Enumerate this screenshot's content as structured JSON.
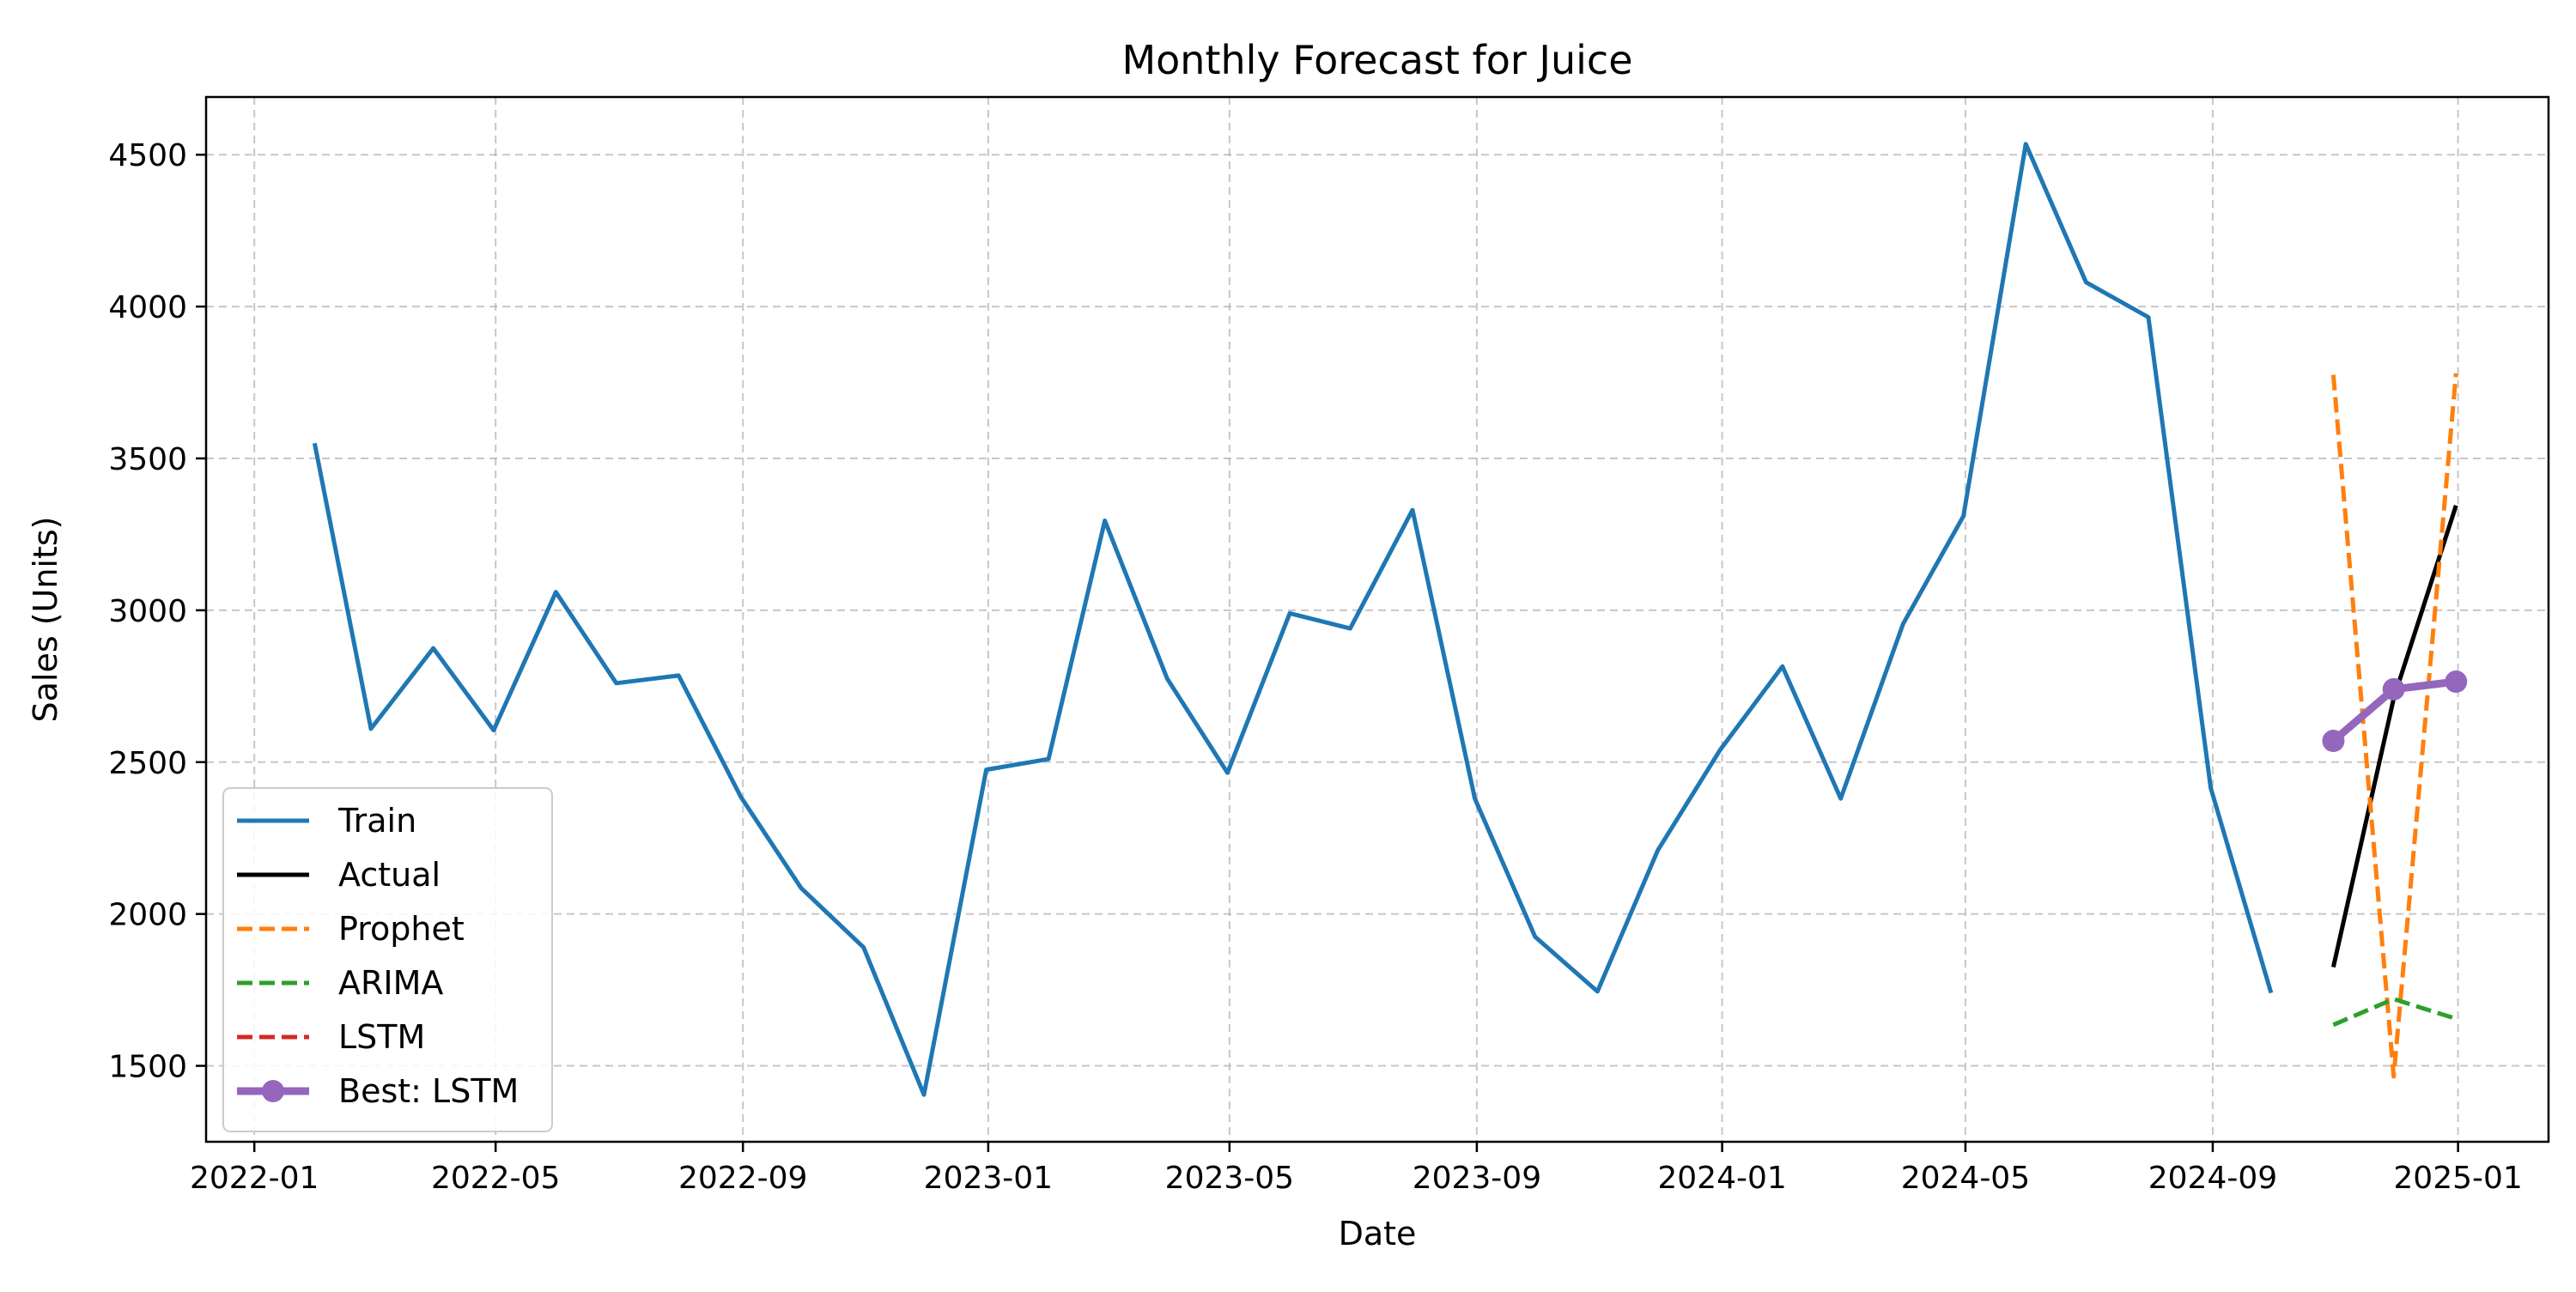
{
  "chart_data": {
    "type": "line",
    "title": "Monthly Forecast for Juice",
    "xlabel": "Date",
    "ylabel": "Sales (Units)",
    "x_tick_labels": [
      "2022-01",
      "2022-05",
      "2022-09",
      "2023-01",
      "2023-05",
      "2023-09",
      "2024-01",
      "2024-05",
      "2024-09",
      "2025-01"
    ],
    "y_ticks": [
      1500,
      2000,
      2500,
      3000,
      3500,
      4000,
      4500
    ],
    "xlim": [
      "2021-12-08",
      "2025-02-15"
    ],
    "ylim": [
      1250,
      4690
    ],
    "grid": true,
    "legend_position": "lower-left",
    "series": [
      {
        "name": "Train",
        "color": "#1f77b4",
        "style": "solid",
        "x": [
          "2022-01-31",
          "2022-02-28",
          "2022-03-31",
          "2022-04-30",
          "2022-05-31",
          "2022-06-30",
          "2022-07-31",
          "2022-08-31",
          "2022-09-30",
          "2022-10-31",
          "2022-11-30",
          "2022-12-31",
          "2023-01-31",
          "2023-02-28",
          "2023-03-31",
          "2023-04-30",
          "2023-05-31",
          "2023-06-30",
          "2023-07-31",
          "2023-08-31",
          "2023-09-30",
          "2023-10-31",
          "2023-11-30",
          "2023-12-31",
          "2024-01-31",
          "2024-02-29",
          "2024-03-31",
          "2024-04-30",
          "2024-05-31",
          "2024-06-30",
          "2024-07-31",
          "2024-08-31",
          "2024-09-30"
        ],
        "y": [
          3550,
          2610,
          2875,
          2605,
          3060,
          2760,
          2785,
          2385,
          2085,
          1890,
          1405,
          2475,
          2510,
          3295,
          2775,
          2465,
          2990,
          2940,
          3330,
          2380,
          1925,
          1745,
          2210,
          2540,
          2815,
          2380,
          2955,
          3310,
          4535,
          4080,
          3965,
          2415,
          1740
        ]
      },
      {
        "name": "Actual",
        "color": "#000000",
        "style": "solid",
        "x": [
          "2024-10-31",
          "2024-11-30",
          "2024-12-31"
        ],
        "y": [
          1825,
          2710,
          3345
        ]
      },
      {
        "name": "Prophet",
        "color": "#ff7f0e",
        "style": "dashed",
        "x": [
          "2024-10-31",
          "2024-11-30",
          "2024-12-31"
        ],
        "y": [
          3775,
          1465,
          3780
        ]
      },
      {
        "name": "ARIMA",
        "color": "#2ca02c",
        "style": "dashed",
        "x": [
          "2024-10-31",
          "2024-11-30",
          "2024-12-31"
        ],
        "y": [
          1635,
          1720,
          1655
        ]
      },
      {
        "name": "LSTM",
        "color": "#d62728",
        "style": "dashed",
        "x": [
          "2024-10-31",
          "2024-11-30",
          "2024-12-31"
        ],
        "y": [
          2570,
          2740,
          2765
        ]
      },
      {
        "name": "Best: LSTM",
        "color": "#9467bd",
        "style": "solid-marker",
        "x": [
          "2024-10-31",
          "2024-11-30",
          "2024-12-31"
        ],
        "y": [
          2570,
          2740,
          2765
        ]
      }
    ]
  }
}
